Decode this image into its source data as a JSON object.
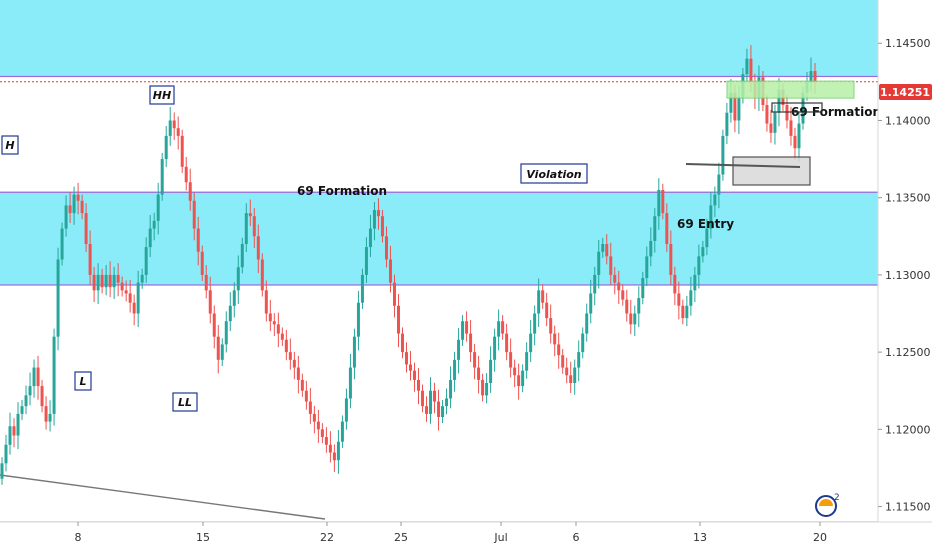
{
  "chart_data": {
    "type": "candlestick",
    "title": "",
    "xlabel": "",
    "ylabel": "",
    "ylim": [
      1.114,
      1.1478
    ],
    "y_ticks": [
      "1.14500",
      "1.14000",
      "1.13500",
      "1.13000",
      "1.12500",
      "1.12000",
      "1.11500"
    ],
    "x_ticks": [
      "8",
      "15",
      "22",
      "25",
      "Jul",
      "6",
      "13",
      "20"
    ],
    "current_price_label": "1.14251",
    "current_price": 1.14251,
    "grid": false,
    "colors": {
      "up": "#26a69a",
      "down": "#ef5350",
      "zone_fill": "#63e5f5",
      "zone_line": "#9c6ade",
      "price_line": "#e53935",
      "green_box": "#b7f0a8",
      "gray_box": "#d9d9d9"
    },
    "zones": [
      {
        "from": 1.1428,
        "to": 1.1478
      },
      {
        "from": 1.1293,
        "to": 1.1354
      }
    ],
    "horizontal_lines": [
      1.14285,
      1.13535,
      1.12935,
      1.114
    ],
    "annotations": [
      {
        "text": "HH",
        "boxed": true
      },
      {
        "text": "H",
        "boxed": true
      },
      {
        "text": "L",
        "boxed": true
      },
      {
        "text": "LL",
        "boxed": true
      },
      {
        "text": "Violation",
        "boxed": true
      },
      {
        "text": "69 Formation",
        "boxed": false
      },
      {
        "text": "69 Entry",
        "boxed": false
      },
      {
        "text": "69 Formation",
        "boxed": false,
        "small": true
      }
    ],
    "ohlc_open": [
      1.1168,
      1.1178,
      1.119,
      1.1202,
      1.1196,
      1.121,
      1.1215,
      1.1222,
      1.1228,
      1.124,
      1.1228,
      1.1215,
      1.1205,
      1.121,
      1.126,
      1.131,
      1.133,
      1.1345,
      1.134,
      1.1352,
      1.1348,
      1.134,
      1.132,
      1.13,
      1.129,
      1.13,
      1.1292,
      1.13,
      1.1292,
      1.13,
      1.1295,
      1.129,
      1.1288,
      1.1282,
      1.1275,
      1.1295,
      1.13,
      1.1318,
      1.133,
      1.1335,
      1.1352,
      1.1375,
      1.139,
      1.14,
      1.1395,
      1.139,
      1.137,
      1.136,
      1.1348,
      1.133,
      1.1315,
      1.13,
      1.129,
      1.1275,
      1.126,
      1.1245,
      1.1255,
      1.127,
      1.128,
      1.129,
      1.1305,
      1.132,
      1.134,
      1.1338,
      1.1325,
      1.131,
      1.129,
      1.1275,
      1.127,
      1.1268,
      1.1262,
      1.1258,
      1.125,
      1.1245,
      1.124,
      1.1232,
      1.1225,
      1.1218,
      1.121,
      1.1205,
      1.12,
      1.1195,
      1.119,
      1.1185,
      1.118,
      1.1192,
      1.1205,
      1.122,
      1.124,
      1.126,
      1.1282,
      1.13,
      1.1318,
      1.133,
      1.1342,
      1.1338,
      1.1325,
      1.131,
      1.1295,
      1.128,
      1.1262,
      1.125,
      1.1242,
      1.1238,
      1.1232,
      1.1225,
      1.1215,
      1.121,
      1.1225,
      1.1218,
      1.1208,
      1.1215,
      1.122,
      1.1232,
      1.1245,
      1.1258,
      1.127,
      1.1262,
      1.125,
      1.124,
      1.1232,
      1.1222,
      1.123,
      1.1245,
      1.126,
      1.127,
      1.1262,
      1.125,
      1.124,
      1.1235,
      1.1228,
      1.1238,
      1.125,
      1.1262,
      1.1275,
      1.129,
      1.1282,
      1.1272,
      1.1262,
      1.1255,
      1.1248,
      1.124,
      1.1235,
      1.123,
      1.124,
      1.125,
      1.1262,
      1.1275,
      1.1288,
      1.13,
      1.1315,
      1.132,
      1.1312,
      1.13,
      1.1295,
      1.129,
      1.1284,
      1.1275,
      1.1268,
      1.1275,
      1.1285,
      1.1298,
      1.1312,
      1.1322,
      1.1338,
      1.1355,
      1.134,
      1.132,
      1.13,
      1.1288,
      1.128,
      1.1272,
      1.128,
      1.129,
      1.13,
      1.1312,
      1.1318,
      1.133,
      1.1345,
      1.1352,
      1.1365,
      1.139,
      1.1405,
      1.1418,
      1.14,
      1.1415,
      1.143,
      1.144,
      1.1425,
      1.1415,
      1.1428,
      1.141,
      1.1398,
      1.1392,
      1.1405,
      1.142,
      1.141,
      1.14,
      1.139,
      1.1382,
      1.1398,
      1.1418,
      1.1425,
      1.1432
    ],
    "ohlc_close": [
      1.1178,
      1.119,
      1.1202,
      1.1196,
      1.121,
      1.1215,
      1.1222,
      1.1228,
      1.124,
      1.1228,
      1.1215,
      1.1205,
      1.121,
      1.126,
      1.131,
      1.133,
      1.1345,
      1.134,
      1.1352,
      1.1348,
      1.134,
      1.132,
      1.13,
      1.129,
      1.13,
      1.1292,
      1.13,
      1.1292,
      1.13,
      1.1295,
      1.129,
      1.1288,
      1.1282,
      1.1275,
      1.1295,
      1.13,
      1.1318,
      1.133,
      1.1335,
      1.1352,
      1.1375,
      1.139,
      1.14,
      1.1395,
      1.139,
      1.137,
      1.136,
      1.1348,
      1.133,
      1.1315,
      1.13,
      1.129,
      1.1275,
      1.126,
      1.1245,
      1.1255,
      1.127,
      1.128,
      1.129,
      1.1305,
      1.132,
      1.134,
      1.1338,
      1.1325,
      1.131,
      1.129,
      1.1275,
      1.127,
      1.1268,
      1.1262,
      1.1258,
      1.125,
      1.1245,
      1.124,
      1.1232,
      1.1225,
      1.1218,
      1.121,
      1.1205,
      1.12,
      1.1195,
      1.119,
      1.1185,
      1.118,
      1.1192,
      1.1205,
      1.122,
      1.124,
      1.126,
      1.1282,
      1.13,
      1.1318,
      1.133,
      1.1342,
      1.1338,
      1.1325,
      1.131,
      1.1295,
      1.128,
      1.1262,
      1.125,
      1.1242,
      1.1238,
      1.1232,
      1.1225,
      1.1215,
      1.121,
      1.1225,
      1.1218,
      1.1208,
      1.1215,
      1.122,
      1.1232,
      1.1245,
      1.1258,
      1.127,
      1.1262,
      1.125,
      1.124,
      1.1232,
      1.1222,
      1.123,
      1.1245,
      1.126,
      1.127,
      1.1262,
      1.125,
      1.124,
      1.1235,
      1.1228,
      1.1238,
      1.125,
      1.1262,
      1.1275,
      1.129,
      1.1282,
      1.1272,
      1.1262,
      1.1255,
      1.1248,
      1.124,
      1.1235,
      1.123,
      1.124,
      1.125,
      1.1262,
      1.1275,
      1.1288,
      1.13,
      1.1315,
      1.132,
      1.1312,
      1.13,
      1.1295,
      1.129,
      1.1284,
      1.1275,
      1.1268,
      1.1275,
      1.1285,
      1.1298,
      1.1312,
      1.1322,
      1.1338,
      1.1355,
      1.134,
      1.132,
      1.13,
      1.1288,
      1.128,
      1.1272,
      1.128,
      1.129,
      1.13,
      1.1312,
      1.1318,
      1.133,
      1.1345,
      1.1352,
      1.1365,
      1.139,
      1.1405,
      1.1418,
      1.14,
      1.1415,
      1.143,
      1.144,
      1.1425,
      1.1415,
      1.1428,
      1.141,
      1.1398,
      1.1392,
      1.1405,
      1.142,
      1.141,
      1.14,
      1.139,
      1.1382,
      1.1398,
      1.1418,
      1.1425,
      1.1432,
      1.1425
    ]
  }
}
